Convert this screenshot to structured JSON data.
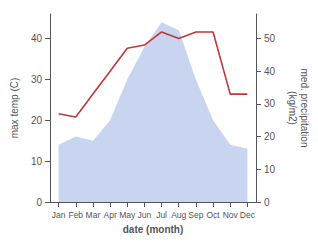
{
  "chart_data": {
    "type": "line",
    "categories": [
      "Jan",
      "Feb",
      "Mar",
      "Apr",
      "May",
      "Jun",
      "Jul",
      "Aug",
      "Sep",
      "Oct",
      "Nov",
      "Dec"
    ],
    "xlabel": "date (month)",
    "ylabel": "max temp (C)",
    "y2label": "med. precipitation\n(kg/m2)",
    "series": [
      {
        "type": "area",
        "color": "#c8d4f0",
        "values": [
          14,
          16,
          15,
          20,
          30,
          38,
          44,
          42,
          30,
          20,
          14,
          13
        ]
      },
      {
        "type": "line",
        "color": "#c0393a",
        "axis": "y2",
        "values": [
          27,
          26,
          33,
          40,
          47,
          48,
          52,
          50,
          52,
          52,
          33,
          33
        ]
      }
    ],
    "ylim": [
      0,
      46
    ],
    "yticks": [
      0,
      10,
      20,
      30,
      40
    ],
    "y2lim": [
      0,
      57.5
    ],
    "y2ticks": [
      0,
      10,
      20,
      30,
      40,
      50
    ],
    "grid": false
  }
}
